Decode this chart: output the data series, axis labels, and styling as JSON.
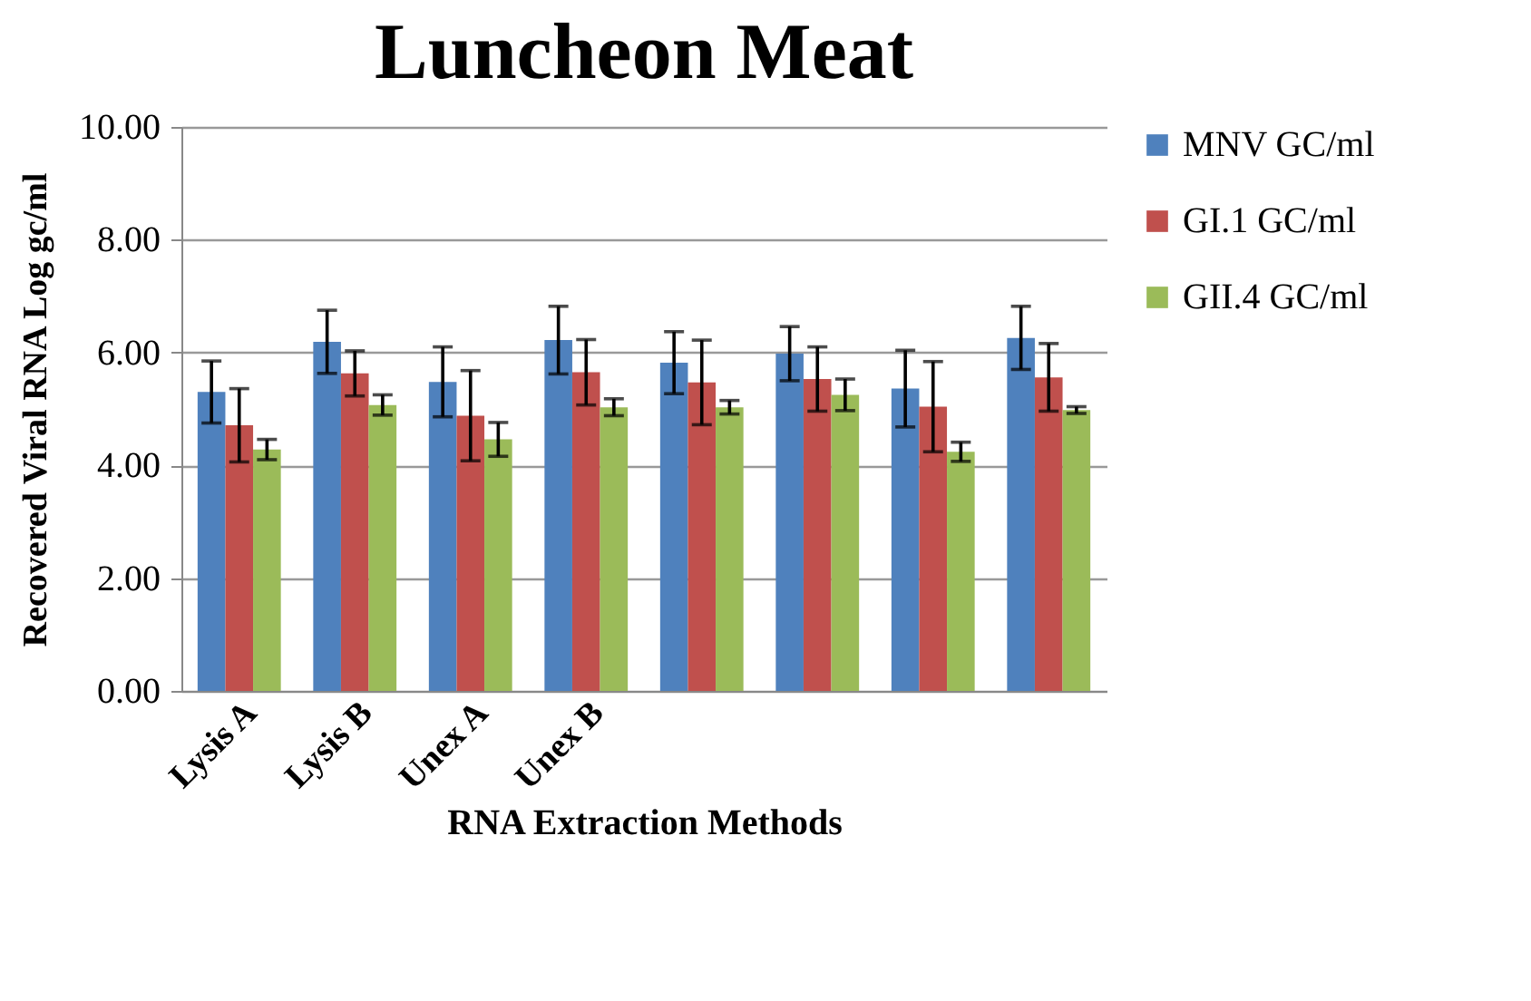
{
  "chart_data": {
    "type": "bar",
    "title": "Luncheon Meat",
    "xlabel": "RNA Extraction Methods",
    "ylabel": "Recovered Viral RNA Log gc/ml",
    "categories": [
      "Lysis A",
      "Lysis B",
      "Unex A",
      "Unex B",
      null,
      null,
      null,
      null
    ],
    "series": [
      {
        "name": "MNV GC/ml",
        "color": "#4f81bd",
        "values": [
          5.3,
          6.19,
          5.48,
          6.22,
          5.82,
          5.98,
          5.36,
          6.26
        ],
        "errors": [
          0.55,
          0.56,
          0.62,
          0.6,
          0.55,
          0.48,
          0.68,
          0.56
        ]
      },
      {
        "name": "GI.1 GC/ml",
        "color": "#c0504d",
        "values": [
          4.71,
          5.63,
          4.88,
          5.65,
          5.47,
          5.53,
          5.04,
          5.56
        ],
        "errors": [
          0.65,
          0.4,
          0.8,
          0.58,
          0.75,
          0.57,
          0.8,
          0.6
        ]
      },
      {
        "name": "GII.4 GC/ml",
        "color": "#9bbb59",
        "values": [
          4.28,
          5.07,
          4.46,
          5.03,
          5.03,
          5.25,
          4.24,
          4.98
        ],
        "errors": [
          0.18,
          0.18,
          0.3,
          0.15,
          0.12,
          0.28,
          0.17,
          0.06
        ]
      }
    ],
    "ylim": [
      0,
      10
    ],
    "yticks": [
      {
        "value": 0,
        "label": "0.00"
      },
      {
        "value": 2,
        "label": "2.00"
      },
      {
        "value": 4,
        "label": "4.00"
      },
      {
        "value": 6,
        "label": "6.00"
      },
      {
        "value": 8,
        "label": "8.00"
      },
      {
        "value": 10,
        "label": "10.00"
      }
    ],
    "grid": "y",
    "legend": "right"
  }
}
